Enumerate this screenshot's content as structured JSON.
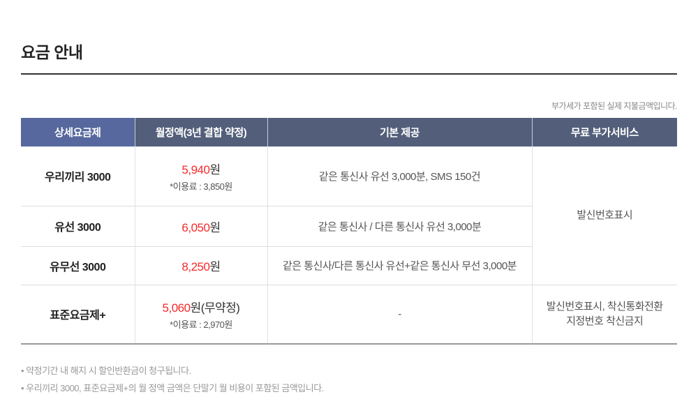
{
  "page": {
    "title": "요금 안내",
    "vat_note": "부가세가 포함된 실제 지불금액입니다."
  },
  "table": {
    "headers": [
      "상세요금제",
      "월정액(3년 결합 약정)",
      "기본 제공",
      "무료 부가서비스"
    ],
    "merged_service": "발신번호표시",
    "rows": [
      {
        "plan": "우리끼리 3000",
        "price": "5,940",
        "price_suffix": "원",
        "price_sub": "*이용료 : 3,850원",
        "basic": "같은 통신사 유선 3,000분, SMS 150건"
      },
      {
        "plan": "유선 3000",
        "price": "6,050",
        "price_suffix": "원",
        "basic": "같은 통신사 / 다른 통신사 유선 3,000분"
      },
      {
        "plan": "유무선 3000",
        "price": "8,250",
        "price_suffix": "원",
        "basic": "같은 통신사/다른 통신사 유선+같은 통신사 무선 3,000분"
      },
      {
        "plan": "표준요금제+",
        "price": "5,060",
        "price_suffix": "원(무약정)",
        "price_sub": "*이용료 : 2,970원",
        "basic": "-",
        "services_line1": "발신번호표시, 착신통화전환",
        "services_line2": "지정번호 착신금지"
      }
    ]
  },
  "footnotes": [
    "• 약정기간 내 해지 시 할인반환금이 청구됩니다.",
    "• 우리끼리 3000, 표준요금제+의 월 정액 금액은 단말기 월 비용이 포함된 금액입니다."
  ],
  "colors": {
    "header_first_bg": "#56689d",
    "header_bg": "#535f7a",
    "price_red": "#f42b2b",
    "title_text": "#222222",
    "note_gray": "#888888",
    "footnote_gray": "#999999"
  }
}
